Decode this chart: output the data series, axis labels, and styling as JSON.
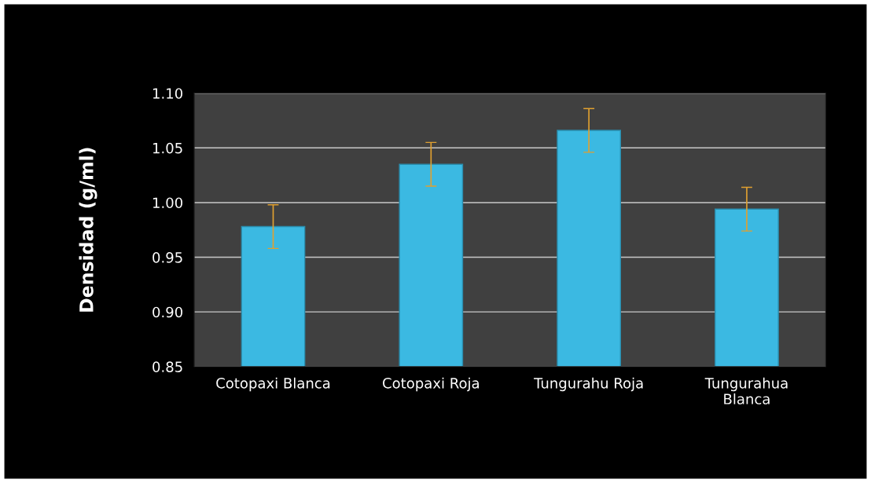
{
  "chart_data": {
    "type": "bar",
    "ylabel": "Densidad (g/ml)",
    "categories": [
      "Cotopaxi Blanca",
      "Cotopaxi Roja",
      "Tungurahu Roja",
      "Tungurahua Blanca"
    ],
    "values": [
      0.978,
      1.035,
      1.066,
      0.994
    ],
    "errors": [
      0.02,
      0.02,
      0.02,
      0.02
    ],
    "color": "#3bb9e2",
    "ylim": [
      0.85,
      1.1
    ],
    "yticks": [
      {
        "value": 0.85,
        "label": "0.85"
      },
      {
        "value": 0.9,
        "label": "0.90"
      },
      {
        "value": 0.95,
        "label": "0.95"
      },
      {
        "value": 1.0,
        "label": "1.00"
      },
      {
        "value": 1.05,
        "label": "1.05"
      },
      {
        "value": 1.1,
        "label": "1.10"
      }
    ],
    "grid": "y"
  }
}
